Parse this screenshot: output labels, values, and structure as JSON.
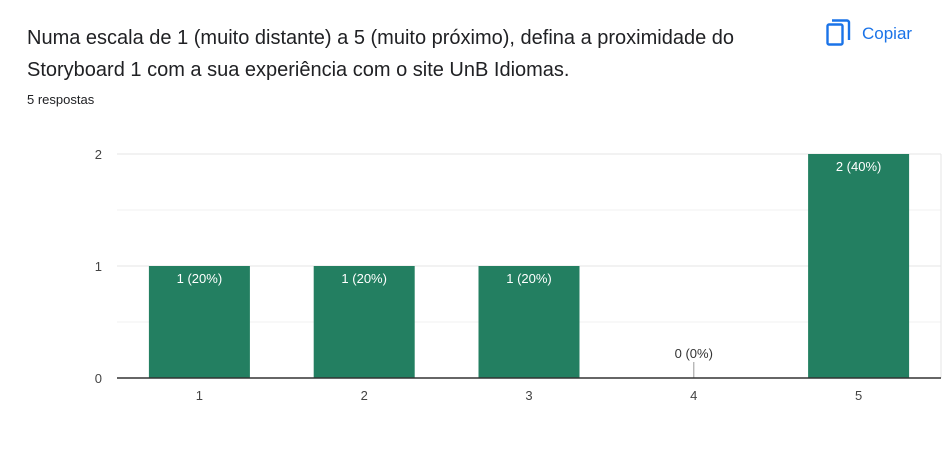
{
  "question": {
    "text": "Numa escala de 1 (muito distante) a 5 (muito próximo), defina a proximidade do Storyboard 1 com a sua experiência com o site UnB Idiomas.",
    "responses": "5 respostas"
  },
  "copy_button": {
    "label": "Copiar",
    "icon": "copy-icon"
  },
  "colors": {
    "bar": "#237f61",
    "accent": "#1a73e8",
    "grid": "#e8e8e8",
    "axis": "#333333"
  },
  "chart_data": {
    "type": "bar",
    "categories": [
      "1",
      "2",
      "3",
      "4",
      "5"
    ],
    "values": [
      1,
      1,
      1,
      0,
      2
    ],
    "data_labels": [
      "1 (20%)",
      "1 (20%)",
      "1 (20%)",
      "0 (0%)",
      "2 (40%)"
    ],
    "y_ticks": [
      0,
      1,
      2
    ],
    "ylim": [
      0,
      2
    ],
    "title": "",
    "xlabel": "",
    "ylabel": "",
    "grid": true
  }
}
